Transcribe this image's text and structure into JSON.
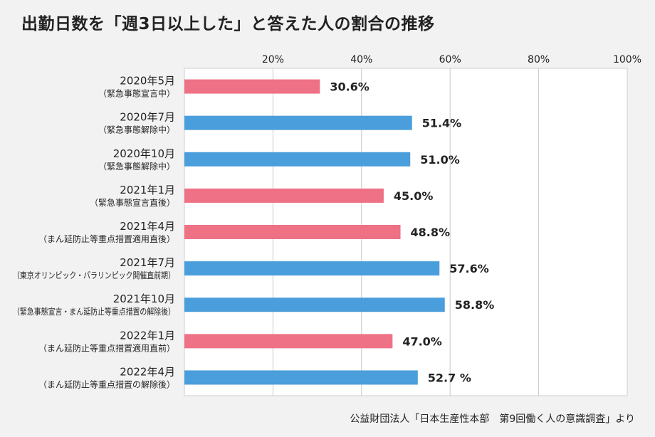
{
  "title": "出勤日数を「週3日以上した」と答えた人の割合の推移",
  "source": "公益財団法人「日本生産性本部　第9回働く人の意識調査」より",
  "colors": {
    "pink": "#ef7186",
    "blue": "#4a9edb"
  },
  "chart_data": {
    "type": "bar",
    "orientation": "horizontal",
    "categories": [
      {
        "label": "2020年5月",
        "sub": "（緊急事態宣言中）"
      },
      {
        "label": "2020年7月",
        "sub": "（緊急事態解除中）"
      },
      {
        "label": "2020年10月",
        "sub": "（緊急事態解除中）"
      },
      {
        "label": "2021年1月",
        "sub": "（緊急事態宣言直後）"
      },
      {
        "label": "2021年4月",
        "sub": "（まん延防止等重点措置適用直後）"
      },
      {
        "label": "2021年7月",
        "sub": "（東京オリンピック・パラリンピック開催直前期）"
      },
      {
        "label": "2021年10月",
        "sub": "（緊急事態宣言・まん延防止等重点措置の解除後）"
      },
      {
        "label": "2022年1月",
        "sub": "（まん延防止等重点措置適用直前）"
      },
      {
        "label": "2022年4月",
        "sub": "（まん延防止等重点措置の解除後）"
      }
    ],
    "values": [
      30.6,
      51.4,
      51.0,
      45.0,
      48.8,
      57.6,
      58.8,
      47.0,
      52.7
    ],
    "value_labels": [
      "30.6%",
      "51.4%",
      "51.0%",
      "45.0%",
      "48.8%",
      "57.6%",
      "58.8%",
      "47.0%",
      "52.7 %"
    ],
    "bar_colors": [
      "pink",
      "blue",
      "blue",
      "pink",
      "pink",
      "blue",
      "blue",
      "pink",
      "blue"
    ],
    "xlim": [
      0,
      100
    ],
    "xticks": [
      20,
      40,
      60,
      80,
      100
    ],
    "xtick_labels": [
      "20%",
      "40%",
      "60%",
      "80%",
      "100%"
    ],
    "grid": true
  }
}
